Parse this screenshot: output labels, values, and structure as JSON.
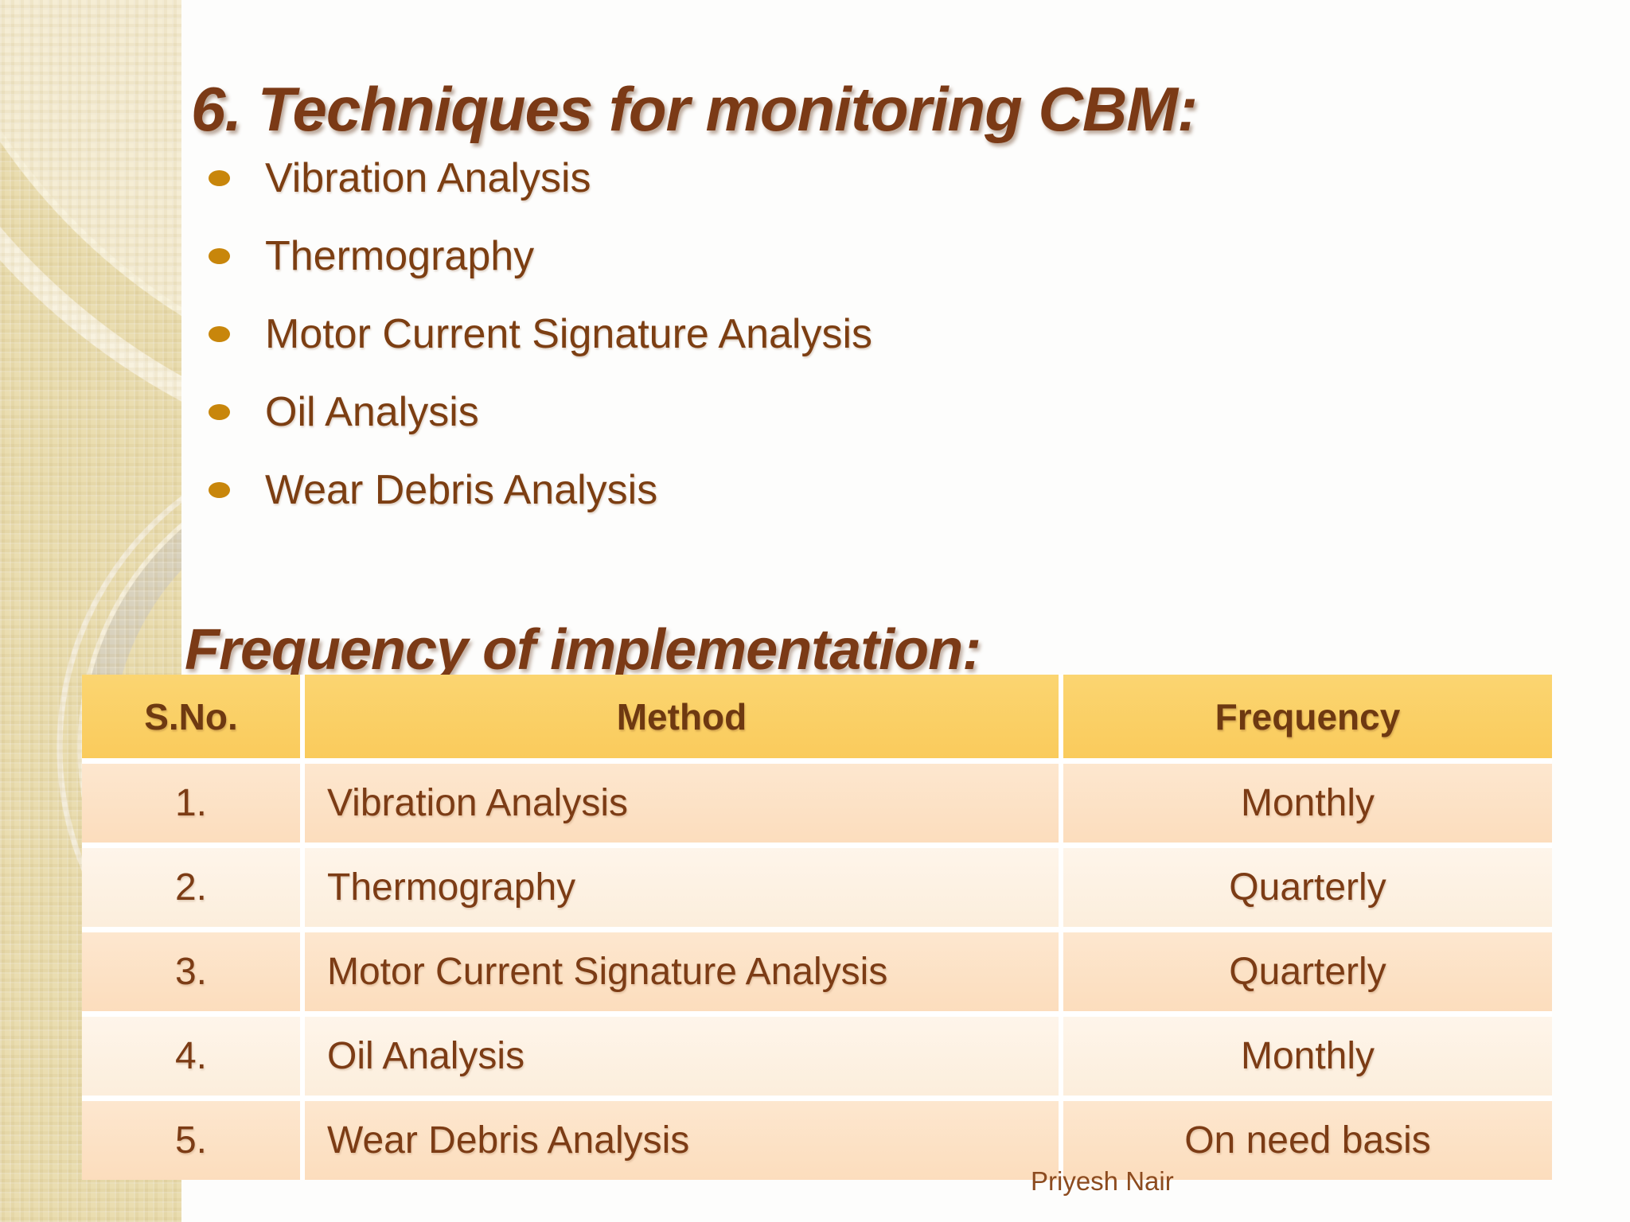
{
  "slide": {
    "title": "6. Techniques for monitoring CBM:",
    "bullets": [
      "Vibration Analysis",
      "Thermography",
      "Motor Current Signature Analysis",
      "Oil Analysis",
      "Wear Debris Analysis"
    ],
    "subheading": "Frequency of implementation:",
    "footer": "Priyesh Nair"
  },
  "table": {
    "headers": [
      "S.No.",
      "Method",
      "Frequency"
    ],
    "rows": [
      {
        "sno": "1.",
        "method": "Vibration Analysis",
        "frequency": "Monthly"
      },
      {
        "sno": "2.",
        "method": "Thermography",
        "frequency": "Quarterly"
      },
      {
        "sno": "3.",
        "method": "Motor Current Signature Analysis",
        "frequency": "Quarterly"
      },
      {
        "sno": "4.",
        "method": "Oil Analysis",
        "frequency": "Monthly"
      },
      {
        "sno": "5.",
        "method": "Wear Debris Analysis",
        "frequency": "On need basis"
      }
    ]
  },
  "colors": {
    "title_brown": "#7B3A16",
    "body_brown": "#7C3E12",
    "bullet_gold": "#C8860B",
    "table_header_bg": "#FBD167",
    "row_odd_bg": "#FCE0C3",
    "row_even_bg": "#FDF2E3",
    "sidebar_tan": "#EADDB0"
  }
}
